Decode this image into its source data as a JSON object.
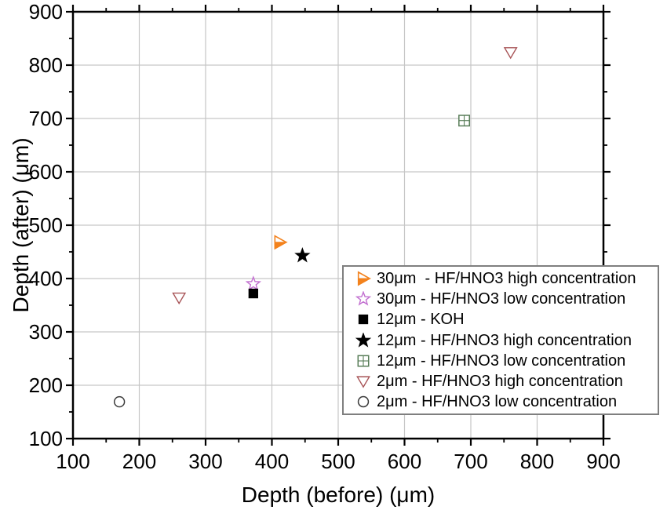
{
  "chart_data": {
    "type": "scatter",
    "title": "",
    "xlabel": "Depth (before) (μm)",
    "ylabel": "Depth (after) (μm)",
    "xlim": [
      100,
      900
    ],
    "ylim": [
      100,
      900
    ],
    "xticks": [
      100,
      200,
      300,
      400,
      500,
      600,
      700,
      800,
      900
    ],
    "yticks": [
      100,
      200,
      300,
      400,
      500,
      600,
      700,
      800,
      900
    ],
    "minor_tick_step": 50,
    "grid": true,
    "legend_position": "inside-right-center",
    "series": [
      {
        "label": "30μm  - HF/HNO3 high concentration",
        "marker": "triangle-right-half",
        "color": "#f3821d",
        "points": [
          [
            412,
            468
          ]
        ]
      },
      {
        "label": "30μm - HF/HNO3 low concentration",
        "marker": "star-open",
        "color": "#c26fd0",
        "points": [
          [
            372,
            390
          ]
        ]
      },
      {
        "label": "12μm - KOH",
        "marker": "square-filled",
        "color": "#000000",
        "points": [
          [
            372,
            372
          ]
        ]
      },
      {
        "label": "12μm - HF/HNO3 high concentration",
        "marker": "star-filled",
        "color": "#000000",
        "points": [
          [
            446,
            443
          ]
        ]
      },
      {
        "label": "12μm - HF/HNO3 low concentration",
        "marker": "square-grid",
        "color": "#587d58",
        "points": [
          [
            690,
            696
          ]
        ]
      },
      {
        "label": "2μm - HF/HNO3 high concentration",
        "marker": "triangle-down-open",
        "color": "#a85457",
        "points": [
          [
            260,
            364
          ],
          [
            760,
            824
          ]
        ]
      },
      {
        "label": "2μm - HF/HNO3 low concentration",
        "marker": "circle-open",
        "color": "#3a3a3a",
        "points": [
          [
            170,
            169
          ]
        ]
      }
    ]
  },
  "colors": {
    "grid": "#c6c6c6",
    "frame": "#000000",
    "legend_border": "#7f7f7f",
    "background": "#ffffff"
  }
}
